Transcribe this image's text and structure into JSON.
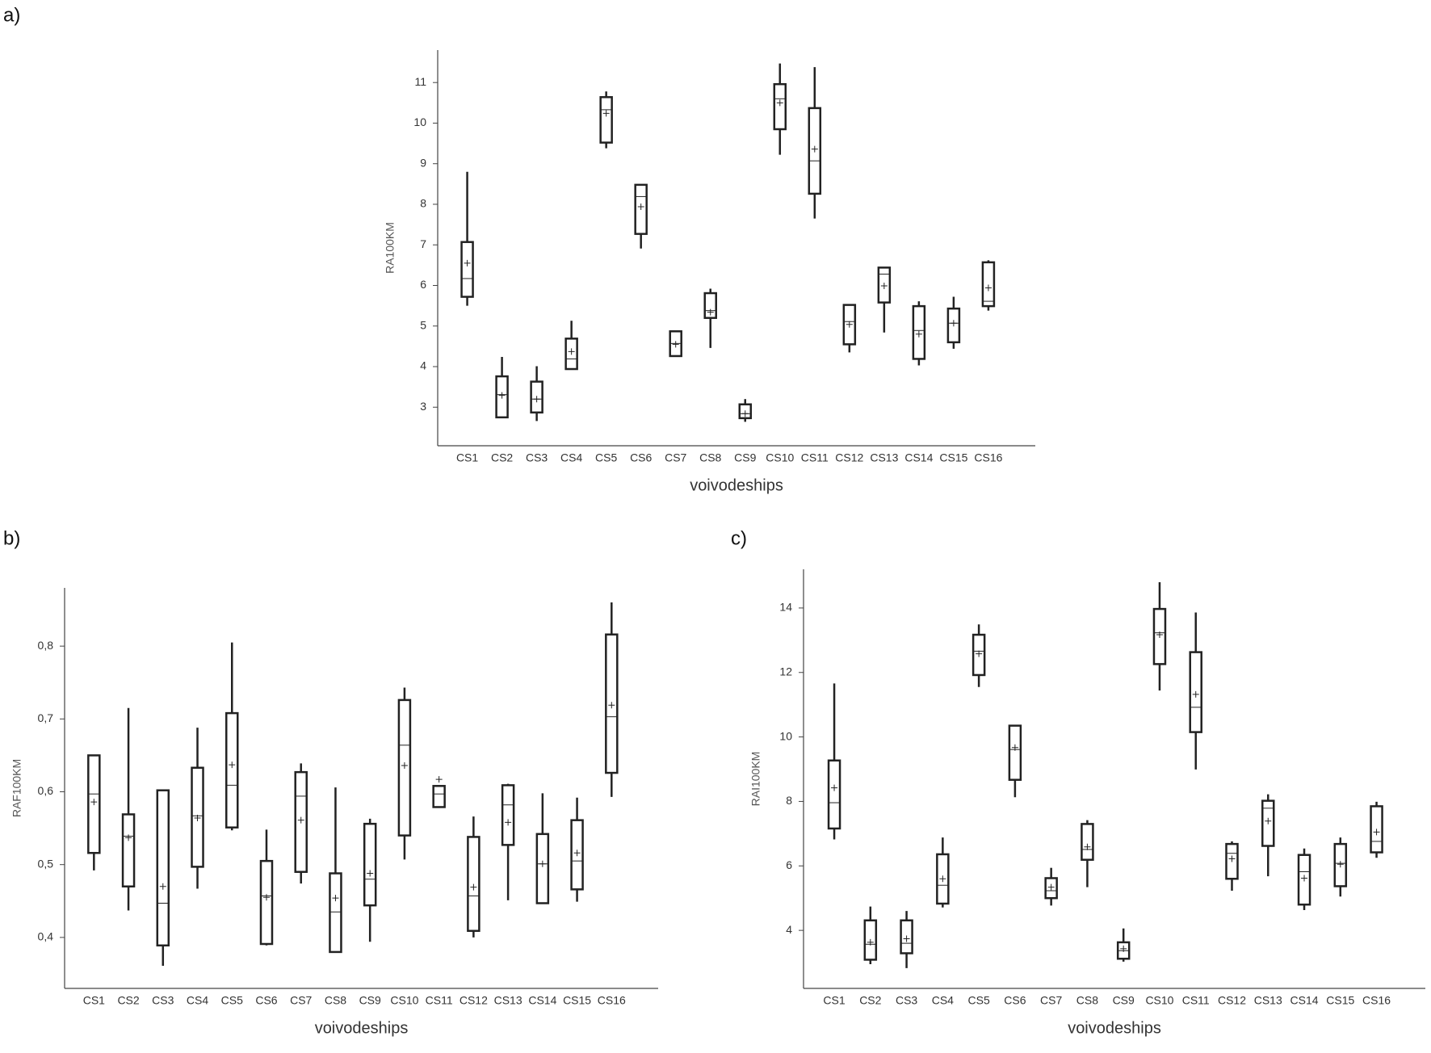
{
  "chart_data": [
    {
      "type": "box",
      "label": "a)",
      "x_label": "voivodeships",
      "y_label": "RA100KM",
      "color": "#222222",
      "categories": [
        "CS1",
        "CS2",
        "CS3",
        "CS4",
        "CS5",
        "CS6",
        "CS7",
        "CS8",
        "CS9",
        "CS10",
        "CS11",
        "CS12",
        "CS13",
        "CS14",
        "CS15",
        "CS16"
      ],
      "min": [
        5.5,
        2.75,
        2.66,
        3.94,
        9.38,
        6.91,
        4.26,
        4.46,
        2.64,
        9.22,
        7.65,
        4.35,
        4.84,
        4.03,
        4.44,
        5.38
      ],
      "q1": [
        5.72,
        2.75,
        2.87,
        3.94,
        9.52,
        7.27,
        4.26,
        5.2,
        2.73,
        9.85,
        8.26,
        4.55,
        5.58,
        4.19,
        4.6,
        5.49
      ],
      "median": [
        6.17,
        3.31,
        3.2,
        4.19,
        10.33,
        8.19,
        4.57,
        5.38,
        2.84,
        10.6,
        9.07,
        5.11,
        6.28,
        4.89,
        5.07,
        5.61
      ],
      "q3": [
        7.07,
        3.76,
        3.63,
        4.69,
        10.64,
        8.48,
        4.87,
        5.81,
        3.07,
        10.96,
        10.37,
        5.52,
        6.44,
        5.49,
        5.43,
        6.57
      ],
      "max": [
        8.8,
        4.24,
        4.01,
        5.13,
        10.78,
        8.48,
        4.87,
        5.92,
        3.2,
        11.47,
        11.38,
        5.52,
        6.44,
        5.61,
        5.72,
        6.62
      ],
      "mean": [
        6.55,
        3.29,
        3.2,
        4.37,
        10.24,
        7.94,
        4.55,
        5.34,
        2.84,
        10.5,
        9.36,
        5.04,
        5.99,
        4.8,
        5.07,
        5.94
      ],
      "ylim": [
        2.05,
        11.8
      ],
      "yticks": [
        3,
        4,
        5,
        6,
        7,
        8,
        9,
        10,
        11
      ],
      "grid": false
    },
    {
      "type": "box",
      "label": "b)",
      "x_label": "voivodeships",
      "y_label": "RAF100KM",
      "color": "#222222",
      "categories": [
        "CS1",
        "CS2",
        "CS3",
        "CS4",
        "CS5",
        "CS6",
        "CS7",
        "CS8",
        "CS9",
        "CS10",
        "CS11",
        "CS12",
        "CS13",
        "CS14",
        "CS15",
        "CS16"
      ],
      "min": [
        0.492,
        0.437,
        0.361,
        0.467,
        0.547,
        0.389,
        0.474,
        0.38,
        0.394,
        0.507,
        0.579,
        0.4,
        0.451,
        0.447,
        0.449,
        0.593
      ],
      "q1": [
        0.516,
        0.47,
        0.389,
        0.497,
        0.551,
        0.391,
        0.49,
        0.38,
        0.444,
        0.54,
        0.579,
        0.409,
        0.527,
        0.447,
        0.466,
        0.626
      ],
      "median": [
        0.597,
        0.539,
        0.447,
        0.567,
        0.609,
        0.457,
        0.594,
        0.435,
        0.48,
        0.664,
        0.597,
        0.457,
        0.582,
        0.501,
        0.505,
        0.703
      ],
      "q3": [
        0.65,
        0.569,
        0.602,
        0.633,
        0.708,
        0.505,
        0.627,
        0.488,
        0.556,
        0.726,
        0.608,
        0.538,
        0.609,
        0.542,
        0.561,
        0.816
      ],
      "max": [
        0.65,
        0.715,
        0.602,
        0.688,
        0.805,
        0.548,
        0.639,
        0.606,
        0.563,
        0.743,
        0.608,
        0.566,
        0.611,
        0.598,
        0.592,
        0.86
      ],
      "mean": [
        0.586,
        0.537,
        0.47,
        0.564,
        0.637,
        0.455,
        0.561,
        0.454,
        0.488,
        0.636,
        0.617,
        0.469,
        0.558,
        0.501,
        0.516,
        0.719
      ],
      "ylim": [
        0.33,
        0.88
      ],
      "yticks": [
        {
          "value": 0.4,
          "label": "0,4"
        },
        {
          "value": 0.5,
          "label": "0,5"
        },
        {
          "value": 0.6,
          "label": "0,6"
        },
        {
          "value": 0.7,
          "label": "0,7"
        },
        {
          "value": 0.8,
          "label": "0,8"
        }
      ],
      "grid": false
    },
    {
      "type": "box",
      "label": "c)",
      "x_label": "voivodeships",
      "y_label": "RAI100KM",
      "color": "#222222",
      "categories": [
        "CS1",
        "CS2",
        "CS3",
        "CS4",
        "CS5",
        "CS6",
        "CS7",
        "CS8",
        "CS9",
        "CS10",
        "CS11",
        "CS12",
        "CS13",
        "CS14",
        "CS15",
        "CS16"
      ],
      "min": [
        6.82,
        2.95,
        2.83,
        4.71,
        11.55,
        8.13,
        4.77,
        5.34,
        3.03,
        11.44,
        8.99,
        5.23,
        5.68,
        4.63,
        5.05,
        6.25
      ],
      "q1": [
        7.16,
        3.09,
        3.29,
        4.83,
        11.92,
        8.67,
        5.0,
        6.19,
        3.12,
        12.26,
        10.15,
        5.6,
        6.62,
        4.8,
        5.37,
        6.42
      ],
      "median": [
        7.96,
        3.57,
        3.6,
        5.4,
        12.66,
        9.61,
        5.23,
        6.51,
        3.37,
        13.23,
        10.92,
        6.39,
        7.79,
        5.82,
        6.08,
        6.76
      ],
      "q3": [
        9.27,
        4.31,
        4.31,
        6.36,
        13.17,
        10.35,
        5.62,
        7.3,
        3.63,
        13.97,
        12.63,
        6.68,
        8.02,
        6.34,
        6.68,
        7.85
      ],
      "max": [
        11.66,
        4.74,
        4.6,
        6.88,
        13.49,
        10.35,
        5.94,
        7.42,
        4.06,
        14.8,
        13.86,
        6.76,
        8.22,
        6.54,
        6.88,
        7.99
      ],
      "mean": [
        8.42,
        3.63,
        3.74,
        5.6,
        12.58,
        9.67,
        5.34,
        6.59,
        3.43,
        13.17,
        11.32,
        6.22,
        7.39,
        5.62,
        6.05,
        7.05
      ],
      "ylim": [
        2.2,
        15.2
      ],
      "yticks": [
        4,
        6,
        8,
        10,
        12,
        14
      ],
      "grid": false
    }
  ]
}
